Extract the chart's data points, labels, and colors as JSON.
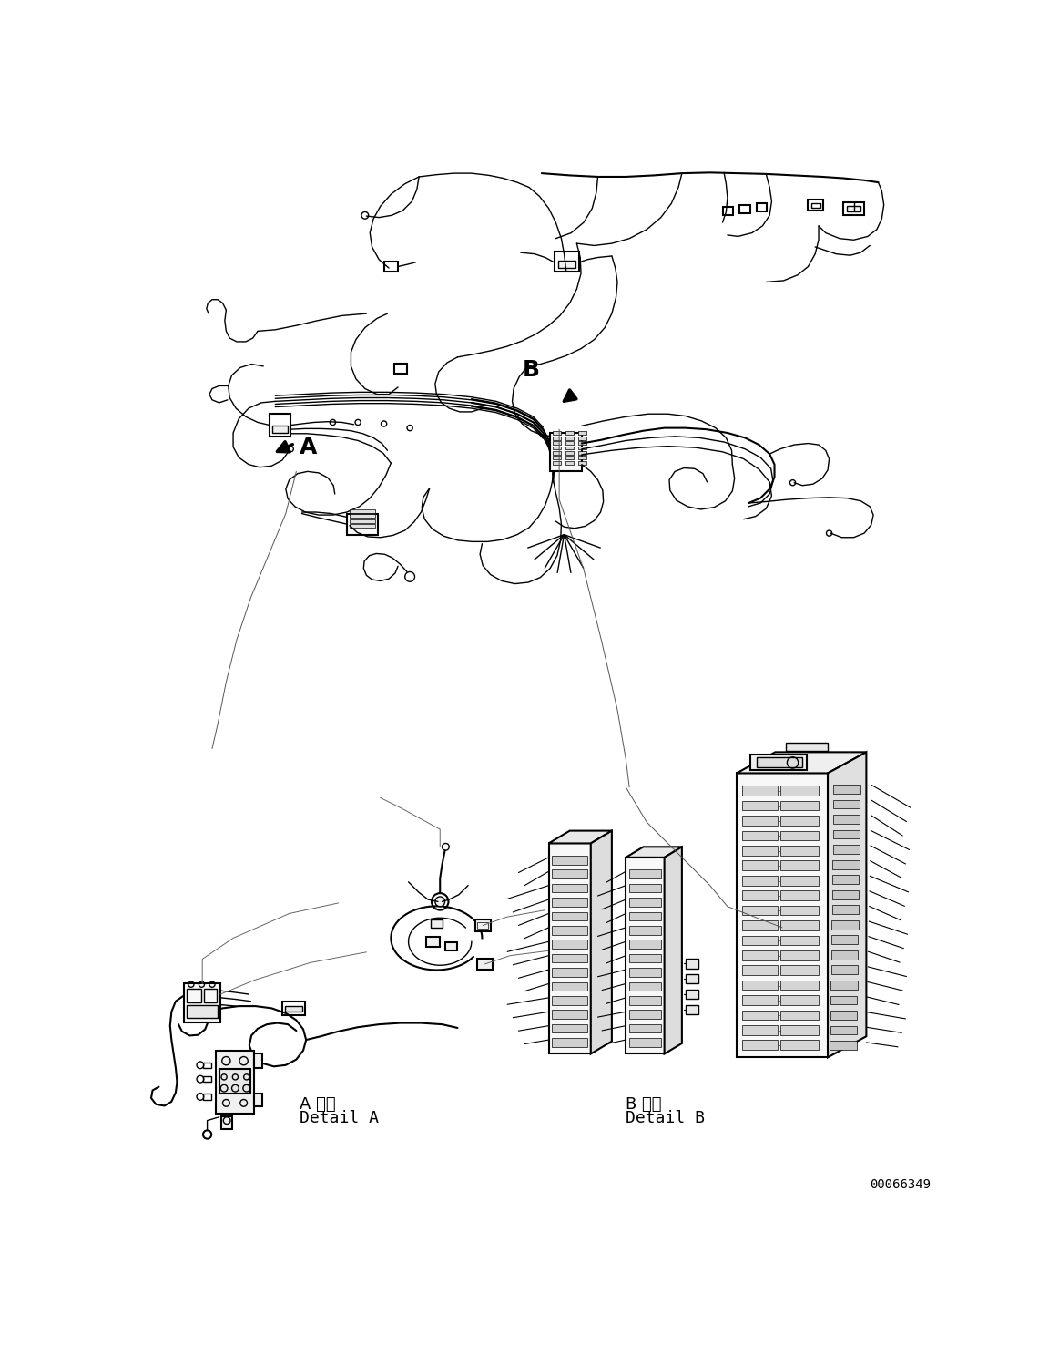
{
  "bg_color": "#ffffff",
  "line_color": "#000000",
  "figsize": [
    11.63,
    14.88
  ],
  "dpi": 100,
  "label_A": "A",
  "label_B": "B",
  "detail_a_text1": "A 詳細",
  "detail_a_text2": "Detail A",
  "detail_b_text1": "B 詳細",
  "detail_b_text2": "Detail B",
  "part_number": "00066349",
  "font_size_labels": 18,
  "font_size_detail": 13,
  "font_size_partnum": 10
}
